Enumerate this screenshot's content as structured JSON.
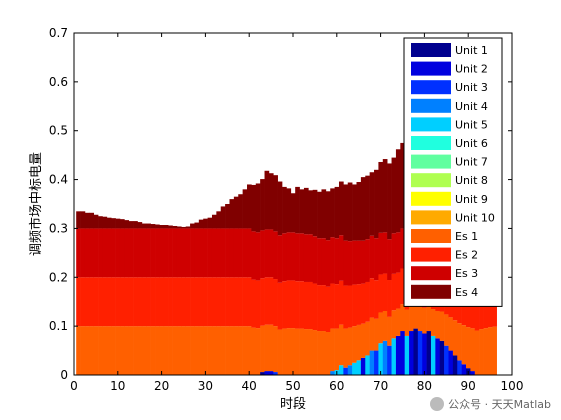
{
  "chart_data": {
    "type": "area",
    "subtype": "stacked-bar",
    "xlabel": "时段",
    "ylabel": "调频市场中标电量",
    "xlim": [
      0,
      100
    ],
    "ylim": [
      0,
      0.7
    ],
    "xticks": [
      0,
      10,
      20,
      30,
      40,
      50,
      60,
      70,
      80,
      90,
      100
    ],
    "yticks": [
      0,
      0.1,
      0.2,
      0.3,
      0.4,
      0.5,
      0.6,
      0.7
    ],
    "legend_position": "top-right",
    "series": [
      {
        "name": "Unit 1",
        "color": "#00008f"
      },
      {
        "name": "Unit 2",
        "color": "#0000df"
      },
      {
        "name": "Unit 3",
        "color": "#0030ff"
      },
      {
        "name": "Unit 4",
        "color": "#0080ff"
      },
      {
        "name": "Unit 5",
        "color": "#00cfff"
      },
      {
        "name": "Unit 6",
        "color": "#20ffdf"
      },
      {
        "name": "Unit 7",
        "color": "#60ff9f"
      },
      {
        "name": "Unit 8",
        "color": "#afff50"
      },
      {
        "name": "Unit 9",
        "color": "#ffff00"
      },
      {
        "name": "Unit 10",
        "color": "#ffaa00"
      },
      {
        "name": "Es 1",
        "color": "#ff6000"
      },
      {
        "name": "Es 2",
        "color": "#ff2000"
      },
      {
        "name": "Es 3",
        "color": "#cf0000"
      },
      {
        "name": "Es 4",
        "color": "#800000"
      }
    ],
    "periods": 96,
    "es1_level": 0.1,
    "es2_level": 0.1,
    "es3_level": 0.1,
    "es4_values": [
      0.035,
      0.035,
      0.032,
      0.032,
      0.028,
      0.025,
      0.024,
      0.022,
      0.021,
      0.02,
      0.019,
      0.017,
      0.015,
      0.015,
      0.013,
      0.01,
      0.01,
      0.009,
      0.008,
      0.007,
      0.007,
      0.006,
      0.005,
      0.004,
      0.003,
      0.004,
      0.01,
      0.012,
      0.018,
      0.02,
      0.022,
      0.028,
      0.035,
      0.045,
      0.05,
      0.06,
      0.065,
      0.07,
      0.08,
      0.09,
      0.095,
      0.1,
      0.105,
      0.12,
      0.115,
      0.115,
      0.11,
      0.095,
      0.09,
      0.08,
      0.095,
      0.09,
      0.095,
      0.09,
      0.095,
      0.095,
      0.1,
      0.1,
      0.1,
      0.105,
      0.11,
      0.115,
      0.12,
      0.115,
      0.12,
      0.13,
      0.13,
      0.13,
      0.14,
      0.145,
      0.15,
      0.155,
      0.155,
      0.17,
      0.175,
      0.18,
      0.195,
      0.19,
      0.2,
      0.21,
      0.22,
      0.225,
      0.215,
      0.205,
      0.2,
      0.2,
      0.19,
      0.185,
      0.17,
      0.165,
      0.16,
      0.14,
      0.13,
      0.12,
      0.11,
      0.105
    ],
    "es_dips": [
      0,
      0,
      0,
      0,
      0,
      0,
      0,
      0,
      0,
      0,
      0,
      0,
      0,
      0,
      0,
      0,
      0,
      0,
      0,
      0,
      0,
      0,
      0,
      0,
      0,
      0,
      0,
      0,
      0,
      0,
      0,
      0,
      0,
      0,
      0,
      0,
      0,
      0,
      0,
      0,
      0.006,
      0.008,
      0.01,
      0.01,
      0.01,
      0.012,
      0.014,
      0.01,
      0.008,
      0.008,
      0.01,
      0.01,
      0.012,
      0.012,
      0.016,
      0.02,
      0.02,
      0.024,
      0.026,
      0.03,
      0.034,
      0.04,
      0.046,
      0.05,
      0.055,
      0.06,
      0.062,
      0.065,
      0.07,
      0.074,
      0.078,
      0.082,
      0.085,
      0.088,
      0.09,
      0.092,
      0.094,
      0.095,
      0.095,
      0.095,
      0.092,
      0.09,
      0.088,
      0.08,
      0.072,
      0.064,
      0.056,
      0.048,
      0.04,
      0.032,
      0.025,
      0.018,
      0.012,
      0.008,
      0.004,
      0.002
    ],
    "unit_periods": [
      {
        "t": 43,
        "unit": 0,
        "v": 0.006
      },
      {
        "t": 44,
        "unit": 1,
        "v": 0.008
      },
      {
        "t": 45,
        "unit": 1,
        "v": 0.008
      },
      {
        "t": 46,
        "unit": 2,
        "v": 0.006
      },
      {
        "t": 59,
        "unit": 3,
        "v": 0.008
      },
      {
        "t": 60,
        "unit": 4,
        "v": 0.01
      },
      {
        "t": 61,
        "unit": 4,
        "v": 0.02
      },
      {
        "t": 62,
        "unit": 2,
        "v": 0.015
      },
      {
        "t": 63,
        "unit": 3,
        "v": 0.02
      },
      {
        "t": 64,
        "unit": 4,
        "v": 0.025
      },
      {
        "t": 65,
        "unit": 4,
        "v": 0.03
      },
      {
        "t": 66,
        "unit": 1,
        "v": 0.035
      },
      {
        "t": 67,
        "unit": 4,
        "v": 0.04
      },
      {
        "t": 68,
        "unit": 3,
        "v": 0.05
      },
      {
        "t": 69,
        "unit": 2,
        "v": 0.05
      },
      {
        "t": 70,
        "unit": 4,
        "v": 0.065
      },
      {
        "t": 71,
        "unit": 3,
        "v": 0.07
      },
      {
        "t": 72,
        "unit": 2,
        "v": 0.06
      },
      {
        "t": 73,
        "unit": 4,
        "v": 0.075
      },
      {
        "t": 74,
        "unit": 1,
        "v": 0.08
      },
      {
        "t": 75,
        "unit": 1,
        "v": 0.09
      },
      {
        "t": 76,
        "unit": 4,
        "v": 0.08
      },
      {
        "t": 77,
        "unit": 1,
        "v": 0.09
      },
      {
        "t": 78,
        "unit": 0,
        "v": 0.095
      },
      {
        "t": 79,
        "unit": 2,
        "v": 0.09
      },
      {
        "t": 80,
        "unit": 1,
        "v": 0.085
      },
      {
        "t": 81,
        "unit": 0,
        "v": 0.09
      },
      {
        "t": 82,
        "unit": 4,
        "v": 0.08
      },
      {
        "t": 83,
        "unit": 1,
        "v": 0.075
      },
      {
        "t": 84,
        "unit": 0,
        "v": 0.07
      },
      {
        "t": 85,
        "unit": 2,
        "v": 0.06
      },
      {
        "t": 86,
        "unit": 1,
        "v": 0.05
      },
      {
        "t": 87,
        "unit": 0,
        "v": 0.04
      },
      {
        "t": 88,
        "unit": 2,
        "v": 0.03
      },
      {
        "t": 89,
        "unit": 1,
        "v": 0.022
      },
      {
        "t": 90,
        "unit": 0,
        "v": 0.014
      },
      {
        "t": 91,
        "unit": 1,
        "v": 0.008
      }
    ]
  },
  "watermark": "公众号 · 天天Matlab"
}
